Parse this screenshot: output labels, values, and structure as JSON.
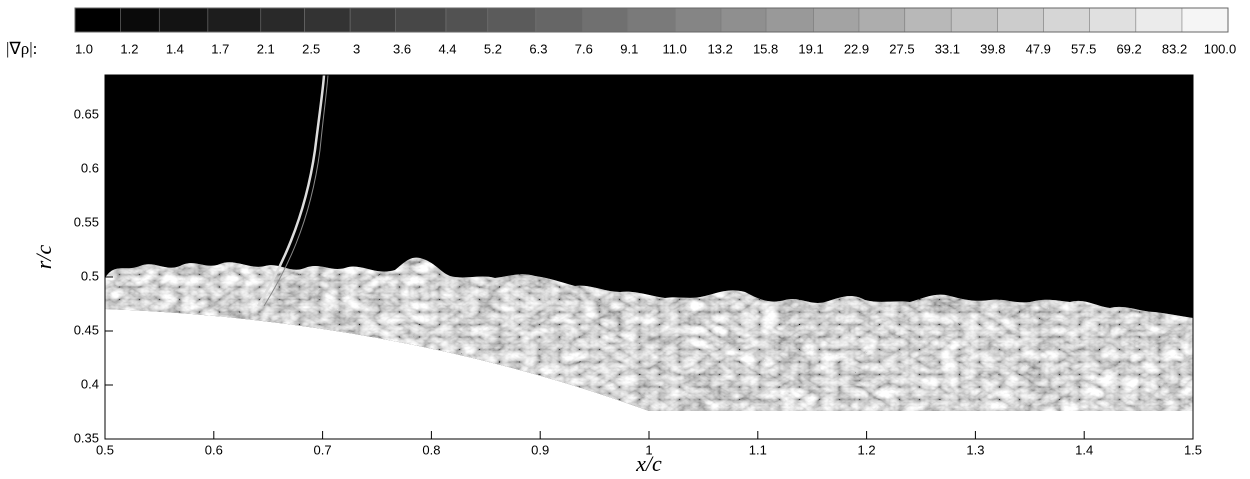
{
  "chart_data": {
    "type": "image",
    "x_label": "x/c",
    "y_label": "r/c",
    "xlim": [
      0.5,
      1.5
    ],
    "xticks": [
      0.5,
      0.6,
      0.7,
      0.8,
      0.9,
      1,
      1.1,
      1.2,
      1.3,
      1.4,
      1.5
    ],
    "ylim": [
      0.35,
      0.687
    ],
    "yticks": [
      0.35,
      0.4,
      0.45,
      0.5,
      0.55,
      0.6,
      0.65
    ],
    "colorbar": {
      "label": "|∇ρ|:",
      "scale": "log",
      "colors": [
        "#000000",
        "#ffffff"
      ],
      "ticks": [
        {
          "value": 1,
          "label": "1.0"
        },
        1.2,
        1.4,
        1.7,
        2.1,
        2.5,
        3.0,
        3.6,
        4.4,
        5.2,
        6.3,
        7.6,
        9.1,
        {
          "value": 11,
          "label": "11.0"
        },
        13.2,
        15.8,
        19.1,
        22.9,
        27.5,
        33.1,
        39.8,
        47.9,
        57.5,
        69.2,
        83.2,
        {
          "value": 100,
          "label": "100.0"
        }
      ]
    }
  }
}
